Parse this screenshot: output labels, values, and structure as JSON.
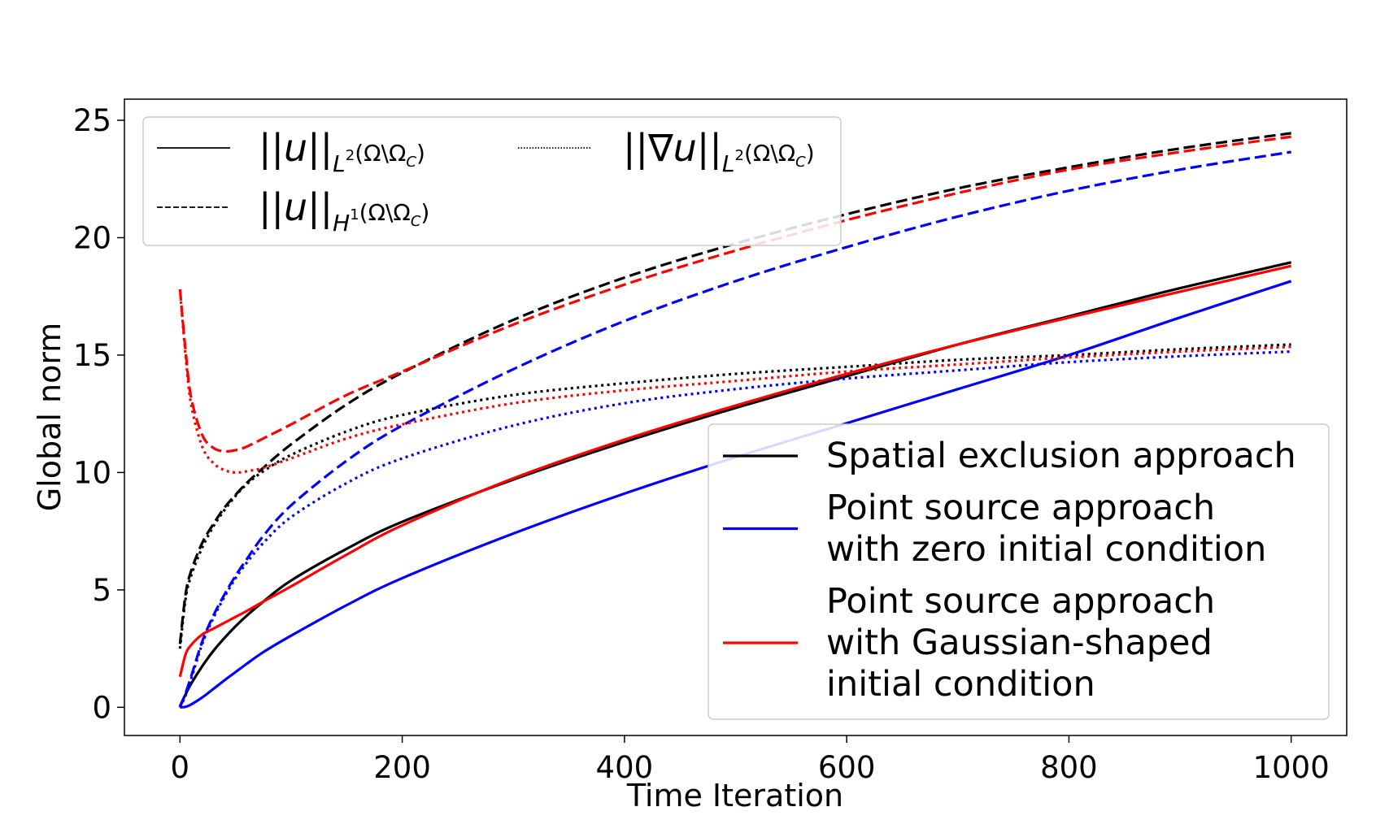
{
  "chart_data": {
    "type": "line",
    "xlabel": "Time Iteration",
    "ylabel": "Global norm",
    "xlim": [
      -50,
      1050
    ],
    "ylim": [
      -1.2,
      25.9
    ],
    "xticks": [
      0,
      200,
      400,
      600,
      800,
      1000
    ],
    "yticks": [
      0,
      5,
      10,
      15,
      20,
      25
    ],
    "grid": false,
    "colors": {
      "spatial": "#000000",
      "zero": "#0000ff",
      "gauss": "#ff0000"
    },
    "norm_legend": {
      "placement": "upper-left",
      "entries": [
        {
          "key": "l2",
          "style": "solid",
          "main": "||u||",
          "sub": "L",
          "sup": "2",
          "domain": "(Ω\\Ω",
          "dsub": "C",
          "close": ")"
        },
        {
          "key": "h1",
          "style": "dashed",
          "main": "||u||",
          "sub": "H",
          "sup": "1",
          "domain": "(Ω\\Ω",
          "dsub": "C",
          "close": ")"
        },
        {
          "key": "grad",
          "style": "dotted",
          "main": "||∇u||",
          "sub": "L",
          "sup": "2",
          "domain": "(Ω\\Ω",
          "dsub": "C",
          "close": ")"
        }
      ]
    },
    "approach_legend": {
      "placement": "lower-right",
      "entries": [
        {
          "color": "#000000",
          "lines": [
            "Spatial exclusion approach"
          ]
        },
        {
          "color": "#0000ff",
          "lines": [
            "Point source approach",
            "with zero initial condition"
          ]
        },
        {
          "color": "#ff0000",
          "lines": [
            "Point source approach",
            "with Gaussian-shaped",
            "initial condition"
          ]
        }
      ]
    },
    "x": [
      0,
      5,
      10,
      20,
      30,
      40,
      50,
      60,
      75,
      100,
      150,
      200,
      300,
      400,
      500,
      600,
      700,
      800,
      900,
      1000
    ],
    "series": [
      {
        "approach": "spatial",
        "norm": "l2",
        "style": "solid",
        "color": "#000000",
        "values": [
          0.05,
          0.55,
          1.0,
          1.75,
          2.4,
          2.95,
          3.45,
          3.9,
          4.5,
          5.4,
          6.75,
          7.9,
          9.7,
          11.3,
          12.75,
          14.1,
          15.45,
          16.65,
          17.85,
          18.95
        ]
      },
      {
        "approach": "spatial",
        "norm": "h1",
        "style": "dashed",
        "color": "#000000",
        "values": [
          2.7,
          4.8,
          5.8,
          7.0,
          7.8,
          8.5,
          9.05,
          9.55,
          10.2,
          11.2,
          12.9,
          14.25,
          16.5,
          18.3,
          19.75,
          21.0,
          22.1,
          23.0,
          23.8,
          24.45
        ]
      },
      {
        "approach": "spatial",
        "norm": "grad",
        "style": "dotted",
        "color": "#000000",
        "values": [
          2.5,
          4.6,
          5.6,
          6.8,
          7.7,
          8.4,
          9.0,
          9.5,
          10.05,
          10.75,
          11.75,
          12.45,
          13.3,
          13.8,
          14.2,
          14.5,
          14.8,
          15.0,
          15.25,
          15.45
        ]
      },
      {
        "approach": "zero",
        "norm": "l2",
        "style": "solid",
        "color": "#0000ff",
        "values": [
          0.0,
          0.02,
          0.12,
          0.42,
          0.78,
          1.15,
          1.5,
          1.85,
          2.35,
          3.05,
          4.35,
          5.5,
          7.4,
          9.1,
          10.65,
          12.1,
          13.55,
          15.0,
          16.6,
          18.15
        ]
      },
      {
        "approach": "zero",
        "norm": "h1",
        "style": "dashed",
        "color": "#0000ff",
        "values": [
          0.0,
          0.6,
          1.3,
          2.8,
          3.9,
          4.8,
          5.6,
          6.3,
          7.3,
          8.6,
          10.5,
          12.0,
          14.4,
          16.45,
          18.15,
          19.6,
          20.9,
          22.0,
          22.9,
          23.65
        ]
      },
      {
        "approach": "zero",
        "norm": "grad",
        "style": "dotted",
        "color": "#0000ff",
        "values": [
          0.0,
          0.5,
          1.2,
          2.7,
          3.8,
          4.7,
          5.5,
          6.15,
          7.0,
          8.1,
          9.55,
          10.6,
          12.0,
          12.95,
          13.55,
          14.0,
          14.35,
          14.7,
          14.95,
          15.15
        ]
      },
      {
        "approach": "gauss",
        "norm": "l2",
        "style": "solid",
        "color": "#ff0000",
        "values": [
          1.3,
          2.25,
          2.65,
          3.1,
          3.35,
          3.6,
          3.85,
          4.1,
          4.5,
          5.15,
          6.5,
          7.75,
          9.75,
          11.4,
          12.85,
          14.2,
          15.45,
          16.6,
          17.7,
          18.8
        ]
      },
      {
        "approach": "gauss",
        "norm": "h1",
        "style": "dashed",
        "color": "#ff0000",
        "values": [
          17.8,
          15.2,
          13.2,
          11.6,
          11.05,
          10.9,
          10.95,
          11.1,
          11.45,
          12.05,
          13.3,
          14.3,
          16.3,
          18.0,
          19.45,
          20.75,
          21.9,
          22.9,
          23.65,
          24.3
        ]
      },
      {
        "approach": "gauss",
        "norm": "grad",
        "style": "dotted",
        "color": "#ff0000",
        "values": [
          17.8,
          15.0,
          12.9,
          11.1,
          10.4,
          10.1,
          10.0,
          10.05,
          10.2,
          10.6,
          11.45,
          12.05,
          12.95,
          13.5,
          13.9,
          14.3,
          14.6,
          14.9,
          15.15,
          15.35
        ]
      }
    ]
  }
}
